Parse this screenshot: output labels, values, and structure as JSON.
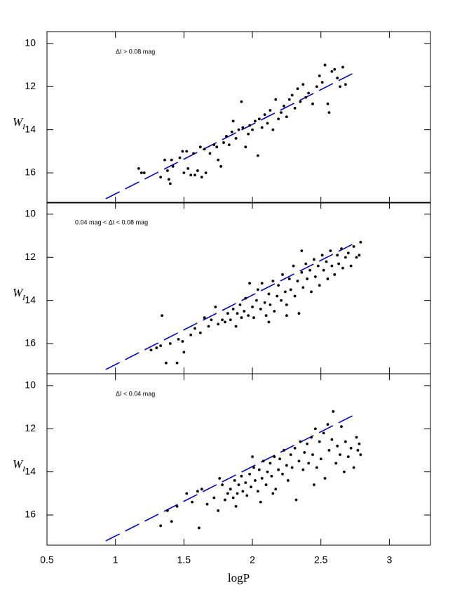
{
  "chart_data": [
    {
      "type": "scatter",
      "annotation": "ΔI > 0.08 mag",
      "ylabel": "W",
      "ylabel_subscript": "I",
      "xlim": [
        0.5,
        3.3
      ],
      "ylim": [
        17.4,
        9.45
      ],
      "xticks": [
        0.5,
        1,
        1.5,
        2,
        2.5,
        3
      ],
      "yticks": [
        10,
        12,
        14,
        16
      ],
      "color": "#000000",
      "x": [
        1.17,
        1.19,
        1.21,
        1.33,
        1.36,
        1.38,
        1.39,
        1.4,
        1.41,
        1.42,
        1.47,
        1.49,
        1.52,
        1.5,
        1.53,
        1.55,
        1.57,
        1.58,
        1.6,
        1.62,
        1.63,
        1.65,
        1.66,
        1.69,
        1.72,
        1.74,
        1.75,
        1.77,
        1.79,
        1.81,
        1.83,
        1.85,
        1.86,
        1.88,
        1.9,
        1.92,
        1.93,
        1.95,
        1.97,
        1.98,
        2.0,
        2.02,
        2.04,
        2.05,
        2.07,
        2.09,
        2.11,
        2.13,
        2.15,
        2.17,
        2.19,
        2.21,
        2.23,
        2.25,
        2.27,
        2.29,
        2.31,
        2.33,
        2.35,
        2.37,
        2.39,
        2.41,
        2.44,
        2.47,
        2.49,
        2.51,
        2.53,
        2.55,
        2.56,
        2.58,
        2.6,
        2.62,
        2.64,
        2.66,
        2.68
      ],
      "y": [
        15.8,
        16.0,
        16.0,
        16.2,
        15.4,
        15.9,
        16.3,
        16.5,
        15.4,
        15.7,
        15.3,
        15.0,
        15.0,
        16.0,
        15.8,
        16.1,
        15.1,
        16.1,
        15.9,
        14.8,
        16.2,
        14.9,
        16.0,
        15.1,
        14.7,
        14.8,
        15.4,
        15.7,
        14.6,
        14.3,
        14.7,
        14.1,
        13.6,
        14.4,
        14.0,
        12.7,
        13.9,
        14.8,
        14.2,
        13.8,
        14.0,
        13.6,
        15.2,
        13.5,
        13.9,
        13.3,
        13.7,
        13.1,
        14.0,
        12.6,
        13.5,
        13.2,
        12.9,
        13.4,
        12.6,
        12.4,
        13.0,
        12.1,
        12.7,
        11.9,
        12.5,
        12.3,
        12.8,
        12.0,
        11.5,
        11.8,
        11.0,
        12.8,
        13.2,
        11.3,
        11.2,
        11.6,
        12.0,
        11.1,
        11.9
      ],
      "fit": {
        "x": [
          0.93,
          2.73
        ],
        "y": [
          17.2,
          11.4
        ],
        "color": "#0000cc"
      }
    },
    {
      "type": "scatter",
      "annotation": "0.04 mag < ΔI < 0.08 mag",
      "ylabel": "W",
      "ylabel_subscript": "I",
      "xlim": [
        0.5,
        3.3
      ],
      "ylim": [
        17.4,
        9.45
      ],
      "xticks": [
        0.5,
        1,
        1.5,
        2,
        2.5,
        3
      ],
      "yticks": [
        10,
        12,
        14,
        16
      ],
      "color": "#000000",
      "x": [
        1.26,
        1.3,
        1.33,
        1.34,
        1.37,
        1.4,
        1.45,
        1.46,
        1.49,
        1.5,
        1.55,
        1.58,
        1.62,
        1.65,
        1.68,
        1.7,
        1.73,
        1.75,
        1.78,
        1.8,
        1.82,
        1.84,
        1.86,
        1.88,
        1.89,
        1.91,
        1.92,
        1.94,
        1.95,
        1.97,
        1.98,
        2.0,
        2.01,
        2.03,
        2.04,
        2.06,
        2.07,
        2.09,
        2.1,
        2.12,
        2.13,
        2.15,
        2.16,
        2.18,
        2.19,
        2.21,
        2.22,
        2.24,
        2.25,
        2.27,
        2.28,
        2.3,
        2.31,
        2.33,
        2.34,
        2.36,
        2.37,
        2.39,
        2.4,
        2.42,
        2.43,
        2.45,
        2.46,
        2.48,
        2.49,
        2.51,
        2.52,
        2.54,
        2.55,
        2.57,
        2.58,
        2.6,
        2.62,
        2.63,
        2.65,
        2.66,
        2.68,
        2.7,
        2.72,
        2.74,
        2.76,
        2.78,
        2.79,
        2.36,
        2.25,
        2.12
      ],
      "y": [
        16.3,
        16.2,
        16.1,
        14.7,
        16.9,
        16.0,
        16.9,
        15.8,
        15.9,
        16.4,
        15.6,
        15.3,
        15.5,
        14.8,
        15.2,
        14.9,
        14.3,
        15.1,
        14.9,
        15.0,
        14.6,
        14.9,
        14.4,
        15.2,
        14.6,
        14.2,
        14.8,
        14.5,
        13.9,
        14.7,
        13.2,
        14.3,
        14.8,
        14.0,
        13.5,
        14.4,
        13.2,
        14.1,
        14.7,
        13.7,
        14.2,
        13.1,
        14.5,
        13.8,
        13.3,
        14.0,
        12.8,
        13.6,
        14.2,
        13.0,
        13.5,
        12.4,
        13.8,
        13.1,
        14.6,
        12.7,
        13.4,
        12.3,
        13.0,
        12.6,
        13.6,
        12.1,
        12.9,
        12.4,
        13.3,
        11.9,
        12.6,
        12.2,
        13.0,
        11.7,
        12.4,
        12.8,
        11.9,
        12.3,
        11.6,
        12.5,
        12.0,
        11.8,
        12.4,
        11.5,
        12.0,
        11.9,
        11.3,
        11.7,
        14.7,
        15.0
      ],
      "fit": {
        "x": [
          0.93,
          2.73
        ],
        "y": [
          17.2,
          11.4
        ],
        "color": "#0000cc"
      }
    },
    {
      "type": "scatter",
      "annotation": "ΔI < 0.04 mag",
      "ylabel": "W",
      "ylabel_subscript": "I",
      "xlabel": "logP",
      "xlim": [
        0.5,
        3.3
      ],
      "ylim": [
        17.4,
        9.45
      ],
      "xticks": [
        0.5,
        1,
        1.5,
        2,
        2.5,
        3
      ],
      "yticks": [
        10,
        12,
        14,
        16
      ],
      "color": "#000000",
      "x": [
        1.33,
        1.38,
        1.41,
        1.45,
        1.52,
        1.56,
        1.6,
        1.61,
        1.63,
        1.67,
        1.72,
        1.75,
        1.78,
        1.8,
        1.82,
        1.84,
        1.86,
        1.87,
        1.89,
        1.9,
        1.92,
        1.93,
        1.95,
        1.96,
        1.98,
        1.99,
        2.01,
        2.02,
        2.04,
        2.05,
        2.07,
        2.08,
        2.1,
        2.11,
        2.13,
        2.14,
        2.16,
        2.17,
        2.19,
        2.2,
        2.22,
        2.23,
        2.25,
        2.26,
        2.28,
        2.29,
        2.31,
        2.32,
        2.34,
        2.35,
        2.37,
        2.38,
        2.4,
        2.41,
        2.43,
        2.44,
        2.46,
        2.47,
        2.49,
        2.5,
        2.52,
        2.53,
        2.55,
        2.56,
        2.58,
        2.59,
        2.61,
        2.62,
        2.64,
        2.65,
        2.67,
        2.68,
        2.7,
        2.72,
        2.74,
        2.76,
        2.77,
        2.78,
        2.79,
        2.06,
        1.88,
        2.15,
        2.45,
        2.0,
        1.76
      ],
      "y": [
        16.5,
        15.8,
        16.3,
        15.6,
        15.0,
        15.4,
        14.9,
        16.6,
        14.8,
        15.5,
        15.2,
        15.8,
        14.6,
        15.3,
        15.0,
        14.8,
        15.2,
        14.4,
        15.0,
        14.6,
        14.2,
        14.9,
        14.5,
        15.1,
        14.1,
        14.7,
        13.8,
        14.4,
        14.9,
        13.9,
        14.3,
        13.5,
        14.6,
        14.0,
        13.6,
        14.2,
        13.3,
        14.8,
        13.9,
        13.4,
        14.1,
        13.0,
        13.7,
        14.4,
        13.2,
        13.8,
        12.9,
        15.3,
        13.5,
        12.6,
        13.9,
        13.1,
        12.7,
        13.6,
        12.4,
        13.2,
        12.0,
        13.8,
        12.6,
        13.4,
        12.2,
        14.3,
        11.8,
        13.0,
        12.5,
        11.2,
        13.6,
        12.8,
        13.2,
        11.9,
        14.0,
        12.6,
        13.3,
        12.9,
        13.8,
        12.4,
        13.0,
        12.7,
        13.2,
        15.4,
        15.6,
        15.0,
        14.6,
        13.3,
        14.3
      ],
      "fit": {
        "x": [
          0.93,
          2.73
        ],
        "y": [
          17.2,
          11.4
        ],
        "color": "#0000cc"
      }
    }
  ]
}
